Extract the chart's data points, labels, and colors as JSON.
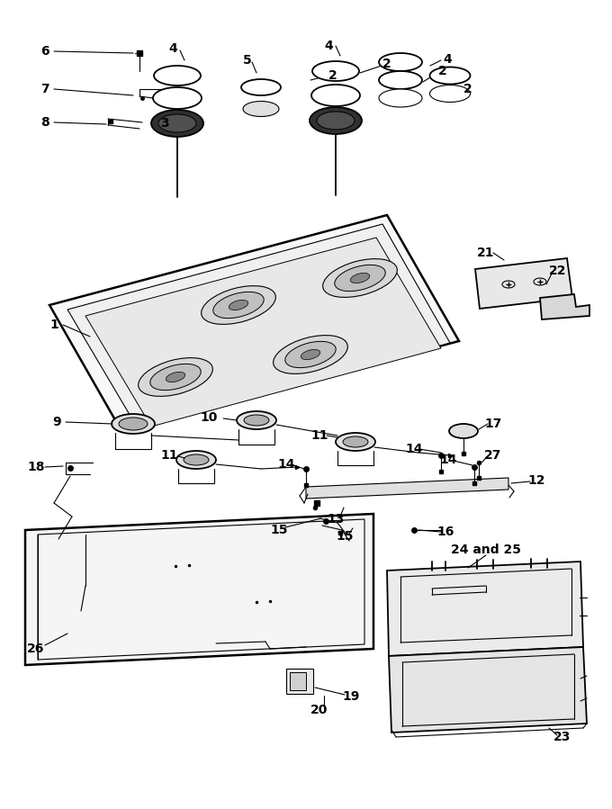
{
  "bg_color": "#ffffff",
  "fig_width": 6.8,
  "fig_height": 8.99,
  "dpi": 100
}
